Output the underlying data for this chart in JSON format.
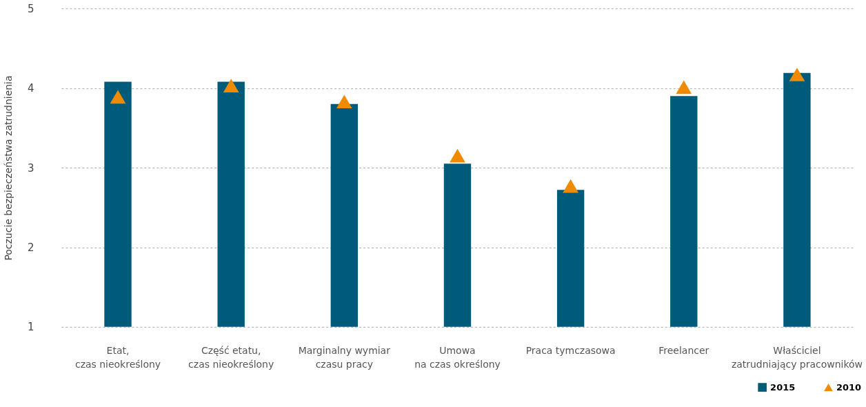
{
  "chart_data": {
    "type": "bar",
    "ylabel": "Poczucie bezpieczeństwa zatrudnienia",
    "categories": [
      "Etat,\nczas nieokreślony",
      "Część etatu,\nczas nieokreślony",
      "Marginalny wymiar\nczasu pracy",
      "Umowa\nna czas określony",
      "Praca tymczasowa",
      "Freelancer",
      "Właściciel\nzatrudniający pracowników"
    ],
    "series": [
      {
        "name": "2015",
        "type": "bar",
        "color": "#005a7a",
        "values": [
          4.08,
          4.08,
          3.8,
          3.05,
          2.72,
          3.9,
          4.19
        ]
      },
      {
        "name": "2010",
        "type": "scatter",
        "marker": "triangle",
        "color": "#f08a00",
        "values": [
          3.89,
          4.03,
          3.83,
          3.15,
          2.77,
          4.01,
          4.17
        ]
      }
    ],
    "ylim": [
      1,
      5
    ],
    "yticks": [
      1,
      2,
      3,
      4,
      5
    ],
    "grid": "y",
    "legend": "bottom right"
  }
}
